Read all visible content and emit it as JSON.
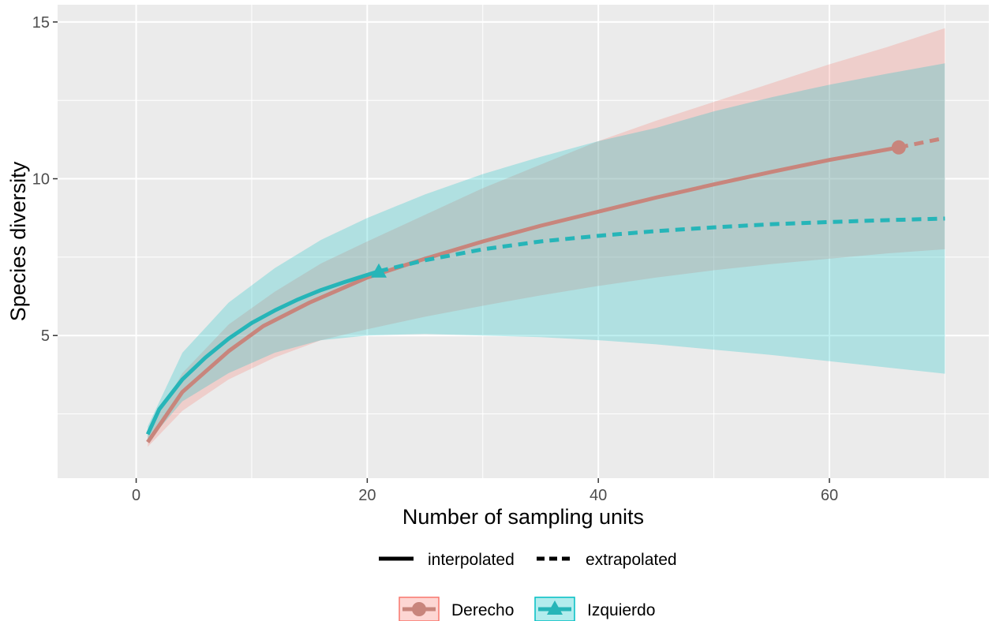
{
  "chart_data": {
    "type": "line",
    "xlabel": "Number of sampling units",
    "ylabel": "Species diversity",
    "xlim": [
      -6.8,
      73.8
    ],
    "ylim": [
      0.45,
      15.55
    ],
    "x_ticks": [
      0,
      20,
      40,
      60
    ],
    "y_ticks": [
      5,
      10,
      15
    ],
    "x_tick_labels": [
      "0",
      "20",
      "40",
      "60"
    ],
    "y_tick_labels": [
      "5",
      "10",
      "15"
    ],
    "grid": true,
    "background": "#EBEBEB",
    "legend_position": "bottom",
    "linetype_legend": [
      "interpolated",
      "extrapolated"
    ],
    "series": [
      {
        "name": "Derecho",
        "color": "#C8857C",
        "fill": "#F8766D",
        "marker": "circle",
        "observed": {
          "x": 66,
          "y": 11.0
        },
        "interpolated": {
          "x": [
            1,
            4,
            8,
            11,
            15,
            20,
            25,
            30,
            35,
            40,
            45,
            50,
            55,
            60,
            66
          ],
          "y": [
            1.6,
            3.2,
            4.5,
            5.3,
            6.05,
            6.85,
            7.45,
            8.0,
            8.5,
            8.95,
            9.4,
            9.82,
            10.22,
            10.6,
            11.0
          ]
        },
        "extrapolated": {
          "x": [
            66,
            68,
            70
          ],
          "y": [
            11.0,
            11.15,
            11.3
          ]
        },
        "ci_lower": {
          "x": [
            1,
            4,
            8,
            12,
            16,
            20,
            25,
            30,
            35,
            40,
            45,
            50,
            55,
            60,
            65,
            70
          ],
          "y": [
            1.45,
            2.6,
            3.6,
            4.3,
            4.85,
            5.2,
            5.6,
            5.95,
            6.28,
            6.58,
            6.85,
            7.08,
            7.28,
            7.45,
            7.62,
            7.75
          ]
        },
        "ci_upper": {
          "x": [
            1,
            4,
            8,
            12,
            16,
            20,
            25,
            30,
            35,
            40,
            45,
            50,
            55,
            60,
            65,
            70
          ],
          "y": [
            1.9,
            3.8,
            5.35,
            6.4,
            7.3,
            8.0,
            8.85,
            9.7,
            10.45,
            11.2,
            11.85,
            12.45,
            13.05,
            13.65,
            14.2,
            14.8
          ]
        }
      },
      {
        "name": "Izquierdo",
        "color": "#26B5B8",
        "fill": "#00BFC4",
        "marker": "triangle",
        "observed": {
          "x": 21,
          "y": 7.05
        },
        "interpolated": {
          "x": [
            1,
            2,
            4,
            6,
            8,
            10,
            12,
            14,
            16,
            18,
            21
          ],
          "y": [
            1.85,
            2.65,
            3.6,
            4.3,
            4.9,
            5.4,
            5.8,
            6.15,
            6.45,
            6.7,
            7.05
          ]
        },
        "extrapolated": {
          "x": [
            21,
            25,
            30,
            35,
            40,
            45,
            50,
            55,
            60,
            65,
            70
          ],
          "y": [
            7.05,
            7.4,
            7.75,
            8.0,
            8.18,
            8.33,
            8.45,
            8.55,
            8.62,
            8.68,
            8.73
          ]
        },
        "ci_lower": {
          "x": [
            1,
            4,
            8,
            12,
            16,
            20,
            25,
            30,
            35,
            40,
            45,
            50,
            55,
            60,
            65,
            70
          ],
          "y": [
            1.6,
            2.9,
            3.8,
            4.45,
            4.85,
            5.0,
            5.05,
            5.0,
            4.95,
            4.85,
            4.72,
            4.55,
            4.38,
            4.18,
            3.98,
            3.78
          ]
        },
        "ci_upper": {
          "x": [
            1,
            4,
            8,
            12,
            16,
            20,
            25,
            30,
            35,
            40,
            45,
            50,
            55,
            60,
            65,
            70
          ],
          "y": [
            2.1,
            4.45,
            6.05,
            7.15,
            8.05,
            8.75,
            9.5,
            10.15,
            10.7,
            11.2,
            11.62,
            12.15,
            12.6,
            13.0,
            13.35,
            13.68
          ]
        }
      }
    ]
  }
}
